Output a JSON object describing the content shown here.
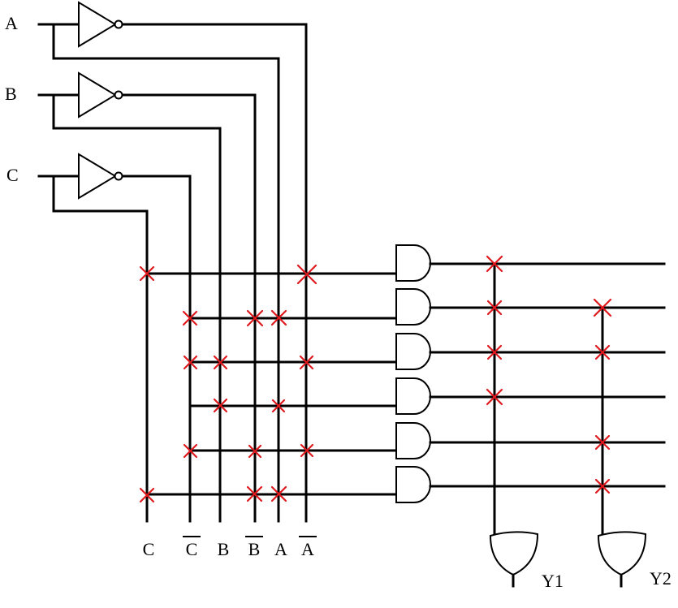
{
  "inputs": [
    "A",
    "B",
    "C"
  ],
  "bus_labels": [
    {
      "text": "C",
      "bar": false
    },
    {
      "text": "C",
      "bar": true
    },
    {
      "text": "B",
      "bar": false
    },
    {
      "text": "B",
      "bar": true
    },
    {
      "text": "A",
      "bar": false
    },
    {
      "text": "A",
      "bar": true
    }
  ],
  "outputs": [
    "Y1",
    "Y2"
  ],
  "colors": {
    "wire": "#000000",
    "fuse": "#e0191e"
  },
  "and_array": [
    {
      "row": 1,
      "fuses": [
        "C",
        "A_bar"
      ]
    },
    {
      "row": 2,
      "fuses": [
        "C_bar",
        "B_bar",
        "A"
      ]
    },
    {
      "row": 3,
      "fuses": [
        "C_bar",
        "B",
        "A_bar"
      ]
    },
    {
      "row": 4,
      "fuses": [
        "B",
        "A"
      ]
    },
    {
      "row": 5,
      "fuses": [
        "C_bar",
        "B_bar",
        "A_bar"
      ]
    },
    {
      "row": 6,
      "fuses": [
        "C",
        "B_bar",
        "A"
      ]
    }
  ],
  "or_array": [
    {
      "output": "Y1",
      "rows": [
        1,
        2,
        3,
        4
      ]
    },
    {
      "output": "Y2",
      "rows": [
        2,
        3,
        5,
        6
      ]
    }
  ]
}
